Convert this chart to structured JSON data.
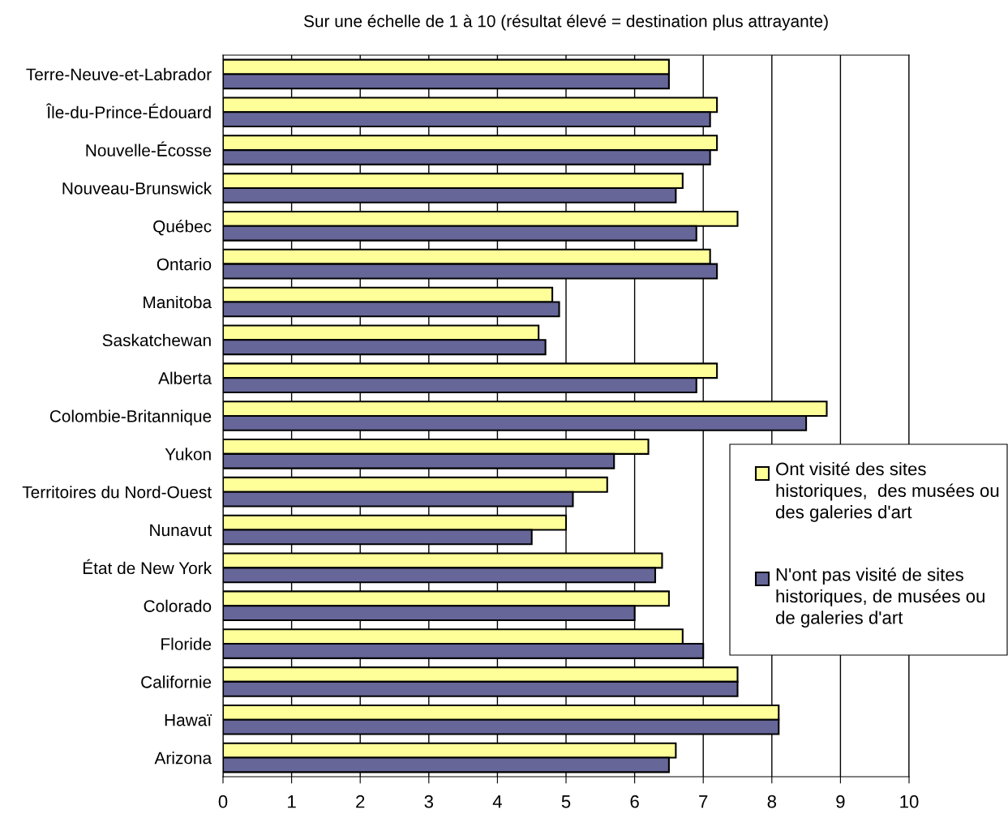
{
  "chart_data": {
    "type": "bar",
    "orientation": "horizontal",
    "title": "Sur une échelle de 1 à 10 (résultat élevé = destination plus attrayante)",
    "categories": [
      "Terre-Neuve-et-Labrador",
      "Île-du-Prince-Édouard",
      "Nouvelle-Écosse",
      "Nouveau-Brunswick",
      "Québec",
      "Ontario",
      "Manitoba",
      "Saskatchewan",
      "Alberta",
      "Colombie-Britannique",
      "Yukon",
      "Territoires du Nord-Ouest",
      "Nunavut",
      "État de New York",
      "Colorado",
      "Floride",
      "Californie",
      "Hawaï",
      "Arizona"
    ],
    "series": [
      {
        "name": "Ont visité des sites historiques,  des musées ou des galeries d'art",
        "color": "#ffff99",
        "values": [
          6.5,
          7.2,
          7.2,
          6.7,
          7.5,
          7.1,
          4.8,
          4.6,
          7.2,
          8.8,
          6.2,
          5.6,
          5.0,
          6.4,
          6.5,
          6.7,
          7.5,
          8.1,
          6.6
        ]
      },
      {
        "name": "N'ont pas visité de sites historiques, de musées ou de galeries d'art",
        "color": "#666699",
        "values": [
          6.5,
          7.1,
          7.1,
          6.6,
          6.9,
          7.2,
          4.9,
          4.7,
          6.9,
          8.5,
          5.7,
          5.1,
          4.5,
          6.3,
          6.0,
          7.0,
          7.5,
          8.1,
          6.5
        ]
      }
    ],
    "xlim": [
      0,
      10
    ],
    "xticks": [
      0,
      1,
      2,
      3,
      4,
      5,
      6,
      7,
      8,
      9,
      10
    ],
    "grid": "x",
    "legend": "right"
  }
}
